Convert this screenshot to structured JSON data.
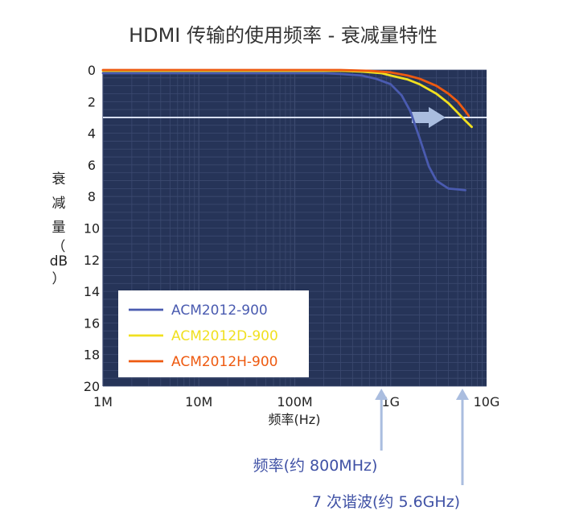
{
  "chart_data": {
    "type": "line",
    "title": "HDMI 传输的使用频率 - 衰减量特性",
    "xlabel": "频率(Hz)",
    "ylabel_chars": [
      "衰",
      "减",
      "量",
      "（",
      "dB",
      "）"
    ],
    "x_scale": "log",
    "xlim": [
      1000000,
      10000000000
    ],
    "x_ticks": [
      {
        "value": 1000000,
        "label": "1M"
      },
      {
        "value": 10000000,
        "label": "10M"
      },
      {
        "value": 100000000,
        "label": "100M"
      },
      {
        "value": 1000000000,
        "label": "1G"
      },
      {
        "value": 10000000000,
        "label": "10G"
      }
    ],
    "ylim": [
      0,
      20
    ],
    "y_inverted": true,
    "y_ticks": [
      0,
      2,
      4,
      6,
      8,
      10,
      12,
      14,
      16,
      18,
      20
    ],
    "grid": true,
    "legend_position": "bottom-left",
    "colors": {
      "background": "#263458",
      "grid": "#3c4a70",
      "threshold": "#d6def0",
      "arrow": "#aabddf",
      "annotation": "#3f51a5"
    },
    "threshold": {
      "y": 3
    },
    "series": [
      {
        "name": "ACM2012-900",
        "color": "#4a5bb0",
        "x": [
          1000000,
          100000000,
          200000000,
          300000000,
          500000000,
          700000000,
          1000000000,
          1300000000,
          1600000000,
          2000000000,
          2500000000,
          3000000000,
          4000000000,
          5000000000,
          6000000000
        ],
        "y": [
          0.2,
          0.2,
          0.2,
          0.25,
          0.35,
          0.55,
          0.9,
          1.6,
          2.6,
          4.3,
          6.1,
          7.0,
          7.5,
          7.55,
          7.6
        ]
      },
      {
        "name": "ACM2012D-900",
        "color": "#f0e020",
        "x": [
          1000000,
          100000000,
          300000000,
          500000000,
          800000000,
          1000000000,
          1500000000,
          2000000000,
          3000000000,
          4000000000,
          5000000000,
          6000000000,
          7000000000
        ],
        "y": [
          0.05,
          0.05,
          0.05,
          0.1,
          0.2,
          0.35,
          0.6,
          0.9,
          1.5,
          2.1,
          2.7,
          3.2,
          3.6
        ]
      },
      {
        "name": "ACM2012H-900",
        "color": "#ee5a10",
        "x": [
          1000000,
          100000000,
          300000000,
          600000000,
          1000000000,
          1500000000,
          2000000000,
          3000000000,
          4000000000,
          5000000000,
          6000000000,
          6500000000
        ],
        "y": [
          0.0,
          0.0,
          0.0,
          0.05,
          0.15,
          0.35,
          0.55,
          1.0,
          1.5,
          2.0,
          2.6,
          2.9
        ]
      }
    ],
    "annotations": [
      {
        "text": "频率(约 800MHz)",
        "x": 800000000
      },
      {
        "text": "7 次谐波(约 5.6GHz)",
        "x": 5600000000
      }
    ]
  }
}
